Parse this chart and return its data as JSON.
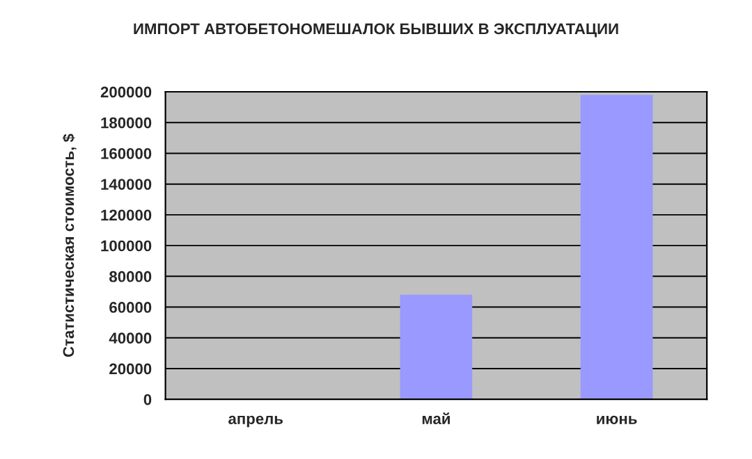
{
  "chart_data": {
    "type": "bar",
    "title": "ИМПОРТ АВТОБЕТОНОМЕШАЛОК БЫВШИХ В ЭКСПЛУАТАЦИИ",
    "ylabel": "Статистическая стоимость, $",
    "categories": [
      "апрель",
      "май",
      "июнь"
    ],
    "values": [
      0,
      68000,
      198000
    ],
    "color": "#9999ff",
    "ylim": [
      0,
      200000
    ],
    "yticks": [
      0,
      20000,
      40000,
      60000,
      80000,
      100000,
      120000,
      140000,
      160000,
      180000,
      200000
    ],
    "grid": "y"
  }
}
